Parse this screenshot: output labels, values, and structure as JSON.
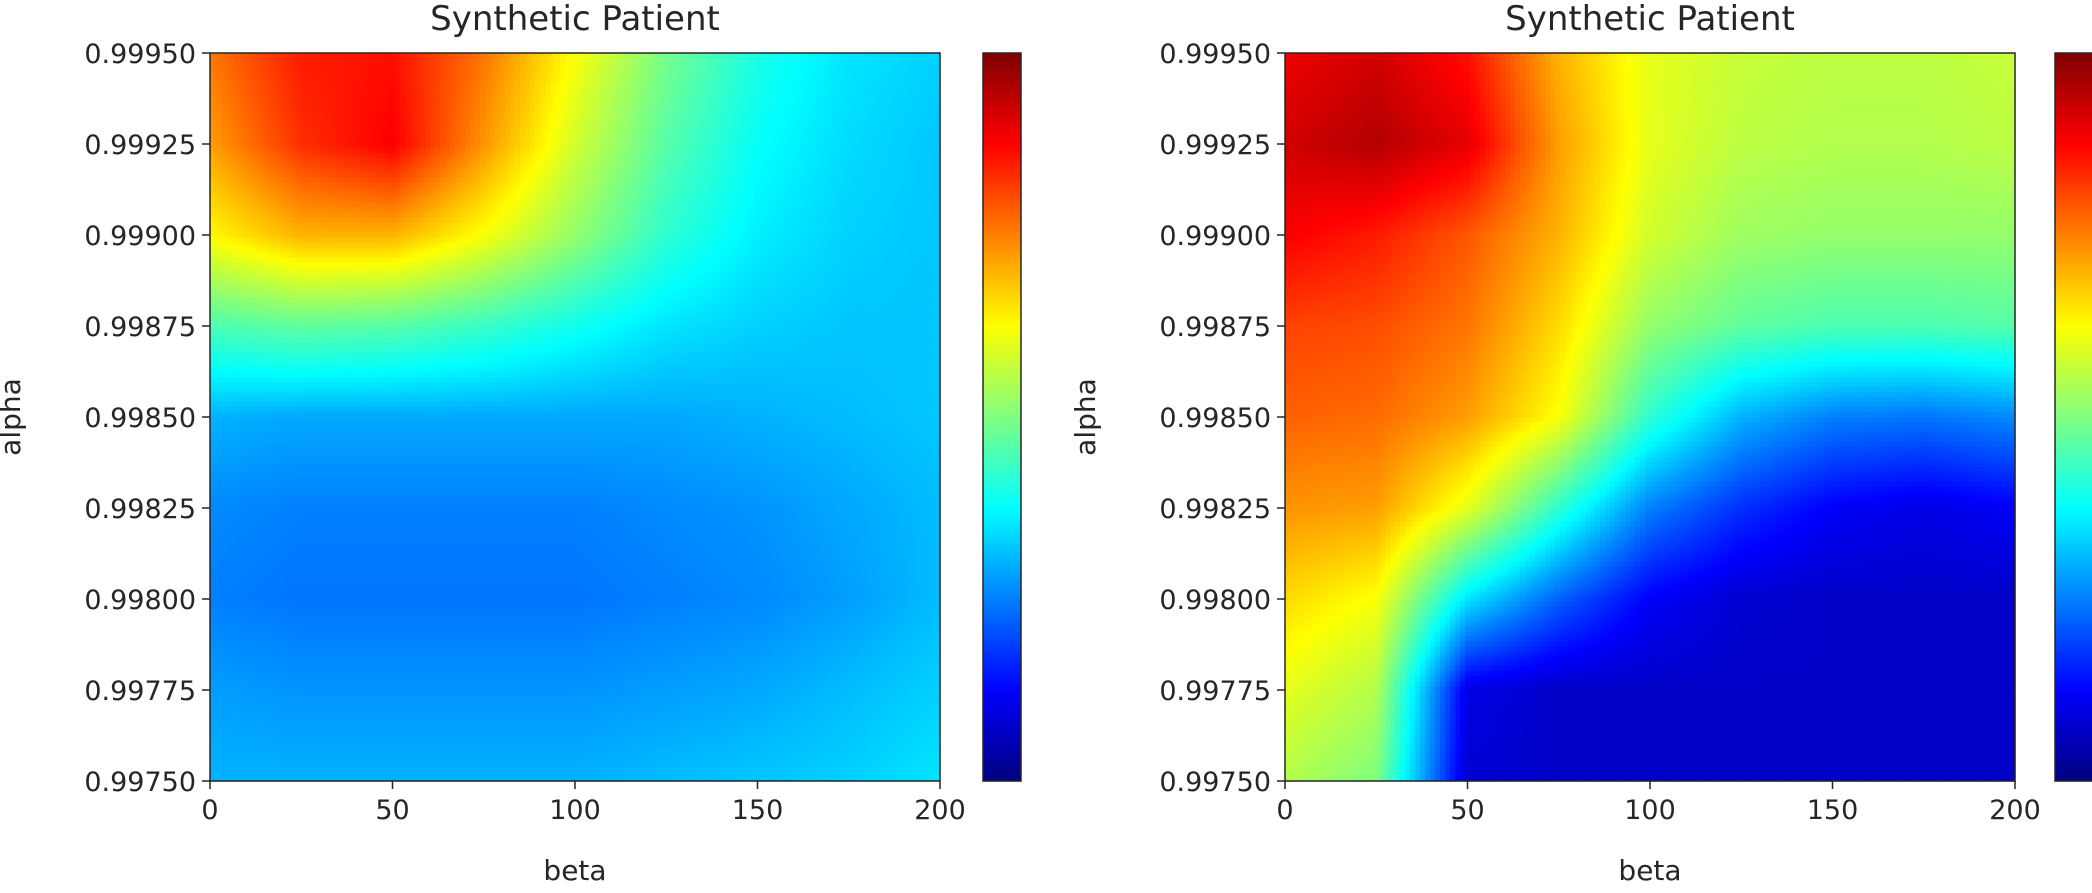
{
  "chart_data": [
    {
      "type": "heatmap",
      "title": "Synthetic Patient",
      "xlabel": "beta",
      "ylabel": "alpha",
      "xlim": [
        0,
        200
      ],
      "ylim": [
        0.9975,
        0.9995
      ],
      "xticks": [
        "0",
        "50",
        "100",
        "150",
        "200"
      ],
      "yticks": [
        "0.99750",
        "0.99775",
        "0.99800",
        "0.99825",
        "0.99850",
        "0.99875",
        "0.99900",
        "0.99925",
        "0.99950"
      ],
      "colormap": "jet",
      "colorbar": true,
      "value_scale": "normalized 0-1 (colorbar has no printed ticks)",
      "x": [
        0,
        25,
        50,
        75,
        100,
        125,
        150,
        175,
        200
      ],
      "y": [
        0.9975,
        0.99775,
        0.998,
        0.99825,
        0.9985,
        0.99875,
        0.999,
        0.99925,
        0.9995
      ],
      "values": [
        [
          0.3,
          0.3,
          0.3,
          0.3,
          0.3,
          0.31,
          0.32,
          0.33,
          0.35
        ],
        [
          0.28,
          0.27,
          0.27,
          0.27,
          0.27,
          0.28,
          0.29,
          0.31,
          0.33
        ],
        [
          0.25,
          0.24,
          0.24,
          0.24,
          0.24,
          0.25,
          0.26,
          0.28,
          0.31
        ],
        [
          0.26,
          0.25,
          0.25,
          0.25,
          0.25,
          0.26,
          0.27,
          0.29,
          0.31
        ],
        [
          0.3,
          0.29,
          0.29,
          0.29,
          0.29,
          0.29,
          0.3,
          0.31,
          0.32
        ],
        [
          0.45,
          0.47,
          0.46,
          0.43,
          0.39,
          0.35,
          0.33,
          0.32,
          0.32
        ],
        [
          0.63,
          0.7,
          0.7,
          0.62,
          0.52,
          0.42,
          0.36,
          0.33,
          0.32
        ],
        [
          0.72,
          0.83,
          0.88,
          0.73,
          0.58,
          0.46,
          0.38,
          0.34,
          0.32
        ],
        [
          0.76,
          0.85,
          0.86,
          0.76,
          0.62,
          0.49,
          0.4,
          0.35,
          0.33
        ]
      ]
    },
    {
      "type": "heatmap",
      "title": "Synthetic Patient",
      "xlabel": "beta",
      "ylabel": "alpha",
      "xlim": [
        0,
        200
      ],
      "ylim": [
        0.9975,
        0.9995
      ],
      "xticks": [
        "0",
        "50",
        "100",
        "150",
        "200"
      ],
      "yticks": [
        "0.99750",
        "0.99775",
        "0.99800",
        "0.99825",
        "0.99850",
        "0.99875",
        "0.99900",
        "0.99925",
        "0.99950"
      ],
      "colormap": "jet",
      "colorbar": true,
      "value_scale": "normalized 0-1 (colorbar has no printed ticks)",
      "x": [
        0,
        25,
        50,
        75,
        100,
        125,
        150,
        175,
        200
      ],
      "y": [
        0.9975,
        0.99775,
        0.998,
        0.99825,
        0.9985,
        0.99875,
        0.999,
        0.99925,
        0.9995
      ],
      "values": [
        [
          0.55,
          0.5,
          0.08,
          0.07,
          0.07,
          0.07,
          0.07,
          0.07,
          0.07
        ],
        [
          0.6,
          0.55,
          0.1,
          0.07,
          0.07,
          0.07,
          0.07,
          0.07,
          0.07
        ],
        [
          0.66,
          0.62,
          0.35,
          0.22,
          0.12,
          0.08,
          0.07,
          0.07,
          0.07
        ],
        [
          0.73,
          0.72,
          0.6,
          0.42,
          0.25,
          0.17,
          0.12,
          0.1,
          0.12
        ],
        [
          0.78,
          0.77,
          0.72,
          0.62,
          0.42,
          0.3,
          0.25,
          0.24,
          0.26
        ],
        [
          0.81,
          0.8,
          0.76,
          0.66,
          0.52,
          0.47,
          0.45,
          0.45,
          0.46
        ],
        [
          0.88,
          0.85,
          0.79,
          0.7,
          0.58,
          0.53,
          0.52,
          0.52,
          0.52
        ],
        [
          0.92,
          0.95,
          0.9,
          0.72,
          0.6,
          0.56,
          0.55,
          0.55,
          0.56
        ],
        [
          0.89,
          0.92,
          0.86,
          0.7,
          0.6,
          0.57,
          0.56,
          0.56,
          0.57
        ]
      ]
    }
  ]
}
